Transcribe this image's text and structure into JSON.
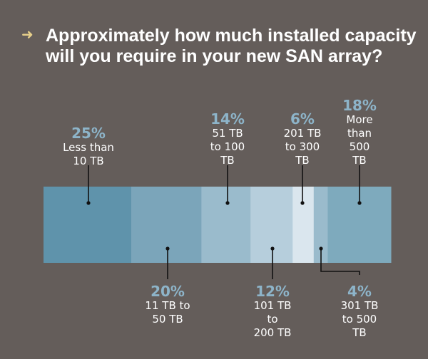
{
  "title": "Approximately how much installed capacity will you require in your new SAN array?",
  "icon": "arrow-right-icon",
  "colors": {
    "background": "#645d5a",
    "accent": "#e6cf8a",
    "percent_text": "#8db4c9"
  },
  "chart_data": {
    "type": "bar",
    "orientation": "horizontal-stacked",
    "title": "Approximately how much installed capacity will you require in your new SAN array?",
    "categories": [
      "Less than 10 TB",
      "11 TB to 50 TB",
      "51 TB to 100 TB",
      "101 TB to 200 TB",
      "201 TB to 300 TB",
      "301 TB to 500 TB",
      "More than 500 TB"
    ],
    "values": [
      25,
      20,
      14,
      12,
      6,
      4,
      18
    ],
    "labels": [
      {
        "pct": "25%",
        "text": "Less than\n10 TB"
      },
      {
        "pct": "20%",
        "text": "11 TB to\n50 TB"
      },
      {
        "pct": "14%",
        "text": "51 TB\nto 100\nTB"
      },
      {
        "pct": "12%",
        "text": "101 TB\nto\n200 TB"
      },
      {
        "pct": "6%",
        "text": "201 TB\nto 300\nTB"
      },
      {
        "pct": "4%",
        "text": "301 TB\nto 500\nTB"
      },
      {
        "pct": "18%",
        "text": "More\nthan\n500\nTB"
      }
    ],
    "colors": [
      "#5f93ab",
      "#7ba5ba",
      "#9abbcc",
      "#b6cedc",
      "#dae6ee",
      "#9abbcc",
      "#7eaabd"
    ]
  }
}
